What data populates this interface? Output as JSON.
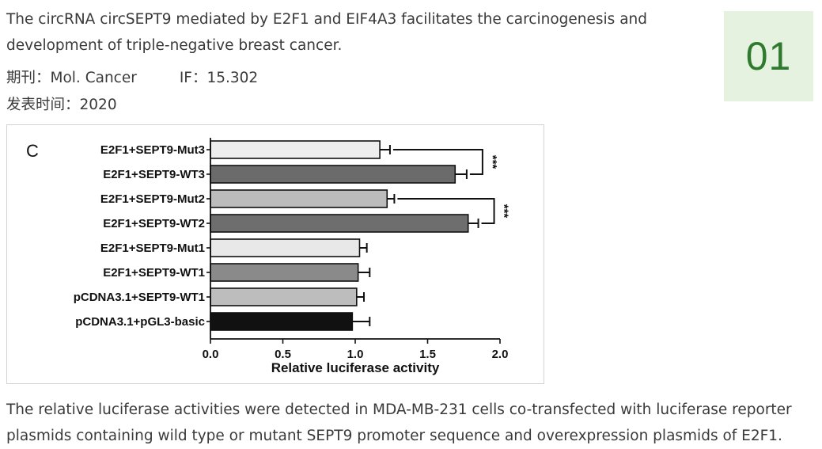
{
  "article": {
    "title": "The circRNA circSEPT9 mediated by E2F1 and EIF4A3 facilitates the carcinogenesis and development of triple-negative breast cancer.",
    "journal_label": "期刊：",
    "journal": "Mol. Cancer",
    "if_label": "IF：",
    "if_value": "15.302",
    "date_label": "发表时间：",
    "date": "2020",
    "badge": "01"
  },
  "figure": {
    "panel_label": "C",
    "caption": "The relative luciferase activities were detected in MDA-MB-231 cells co-transfected with luciferase reporter plasmids containing wild type or mutant SEPT9 promoter sequence and overexpression plasmids of E2F1."
  },
  "chart_data": {
    "type": "bar",
    "orientation": "horizontal",
    "categories": [
      "E2F1+SEPT9-Mut3",
      "E2F1+SEPT9-WT3",
      "E2F1+SEPT9-Mut2",
      "E2F1+SEPT9-WT2",
      "E2F1+SEPT9-Mut1",
      "E2F1+SEPT9-WT1",
      "pCDNA3.1+SEPT9-WT1",
      "pCDNA3.1+pGL3-basic"
    ],
    "values": [
      1.17,
      1.69,
      1.22,
      1.78,
      1.03,
      1.02,
      1.01,
      0.98
    ],
    "errors": [
      0.07,
      0.08,
      0.05,
      0.07,
      0.05,
      0.08,
      0.05,
      0.12
    ],
    "bar_colors": [
      "#eeeeee",
      "#6b6b6b",
      "#bcbcbc",
      "#6e6e6e",
      "#e8e8e8",
      "#8a8a8a",
      "#bdbdbd",
      "#111111"
    ],
    "xlabel": "Relative luciferase activity",
    "ylabel": "",
    "xlim": [
      0,
      2.0
    ],
    "xticks": [
      "0.0",
      "0.5",
      "1.0",
      "1.5",
      "2.0"
    ],
    "significance": [
      {
        "between": [
          "E2F1+SEPT9-Mut3",
          "E2F1+SEPT9-WT3"
        ],
        "label": "***"
      },
      {
        "between": [
          "E2F1+SEPT9-Mut2",
          "E2F1+SEPT9-WT2"
        ],
        "label": "***"
      }
    ],
    "grid": false,
    "legend": "none"
  }
}
